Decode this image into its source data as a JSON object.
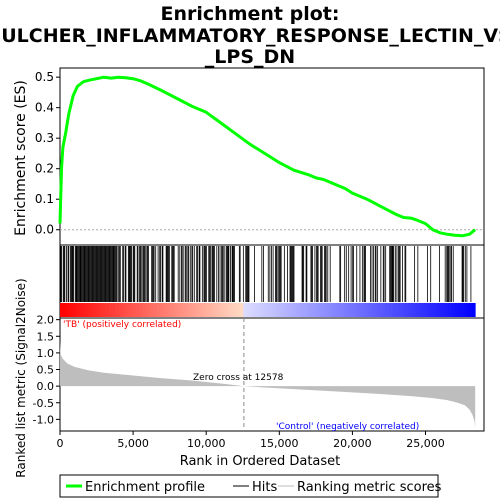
{
  "chart_data": {
    "type": "line",
    "title_line1": "Enrichment plot:",
    "title_line2": "FULCHER_INFLAMMATORY_RESPONSE_LECTIN_VS",
    "title_line3": "_LPS_DN",
    "es_panel": {
      "ylabel": "Enrichment score (ES)",
      "ylim": [
        -0.05,
        0.53
      ],
      "yticks": [
        0.0,
        0.1,
        0.2,
        0.3,
        0.4,
        0.5
      ],
      "ytick_labels": [
        "0.0",
        "0.1",
        "0.2",
        "0.3",
        "0.4",
        "0.5"
      ],
      "series_name": "Enrichment profile",
      "color": "#00ff00",
      "x": [
        0,
        100,
        200,
        400,
        600,
        900,
        1200,
        1600,
        2000,
        2500,
        3000,
        3500,
        4000,
        4500,
        5000,
        5500,
        6000,
        7000,
        8000,
        9000,
        10000,
        11000,
        12000,
        13000,
        14000,
        15000,
        16000,
        17000,
        17500,
        18000,
        18500,
        19000,
        19500,
        20000,
        21000,
        22000,
        23000,
        23500,
        24000,
        24500,
        25000,
        25500,
        26000,
        26500,
        27000,
        27500,
        28000,
        28400
      ],
      "y": [
        0.02,
        0.2,
        0.27,
        0.32,
        0.38,
        0.44,
        0.47,
        0.485,
        0.49,
        0.495,
        0.5,
        0.497,
        0.5,
        0.498,
        0.495,
        0.488,
        0.478,
        0.455,
        0.43,
        0.405,
        0.385,
        0.35,
        0.315,
        0.28,
        0.25,
        0.22,
        0.195,
        0.18,
        0.17,
        0.165,
        0.155,
        0.145,
        0.135,
        0.12,
        0.1,
        0.075,
        0.05,
        0.04,
        0.038,
        0.03,
        0.02,
        0.0,
        -0.01,
        -0.015,
        -0.018,
        -0.02,
        -0.015,
        0.0
      ]
    },
    "hits_panel": {
      "series_name": "Hits"
    },
    "metric_panel": {
      "ylabel": "Ranked list metric (Signal2Noise)",
      "ylim": [
        -1.35,
        2.05
      ],
      "yticks": [
        2.0,
        1.5,
        1.0,
        0.5,
        0.0,
        -0.5,
        -1.0
      ],
      "ytick_labels": [
        "2.0",
        "1.5",
        "1.0",
        "0.5",
        "0.0",
        "-0.5",
        "-1.0"
      ],
      "series_name": "Ranking metric scores",
      "x": [
        0,
        50,
        200,
        500,
        1000,
        2000,
        3000,
        5000,
        7000,
        9000,
        11000,
        12578,
        14000,
        16000,
        18000,
        20000,
        22000,
        24000,
        25500,
        26500,
        27200,
        27700,
        28000,
        28200,
        28350,
        28400
      ],
      "y": [
        1.35,
        0.95,
        0.82,
        0.68,
        0.58,
        0.47,
        0.4,
        0.32,
        0.24,
        0.17,
        0.08,
        0.0,
        -0.04,
        -0.09,
        -0.14,
        -0.19,
        -0.24,
        -0.3,
        -0.36,
        -0.42,
        -0.5,
        -0.58,
        -0.7,
        -0.85,
        -1.05,
        -1.25
      ],
      "zero_cross_label": "Zero cross at 12578",
      "zero_cross_x": 12578,
      "pos_label": "'TB' (positively correlated)",
      "neg_label": "'Control' (negatively correlated)"
    },
    "xaxis": {
      "xlabel": "Rank in Ordered Dataset",
      "xlim": [
        0,
        29000
      ],
      "xticks": [
        0,
        5000,
        10000,
        15000,
        20000,
        25000
      ],
      "xtick_labels": [
        "0",
        "5,000",
        "10,000",
        "15,000",
        "20,000",
        "25,000"
      ],
      "total": 28400
    },
    "legend": {
      "placement": "bottom",
      "items": [
        "Enrichment profile",
        "Hits",
        "Ranking metric scores"
      ]
    }
  },
  "colors": {
    "es_line": "#00ff00",
    "hit": "#000000",
    "metric_fill": "#bebebe",
    "pos_label": "#ff0000",
    "neg_label": "#0000ff",
    "zero_line": "#888888"
  }
}
